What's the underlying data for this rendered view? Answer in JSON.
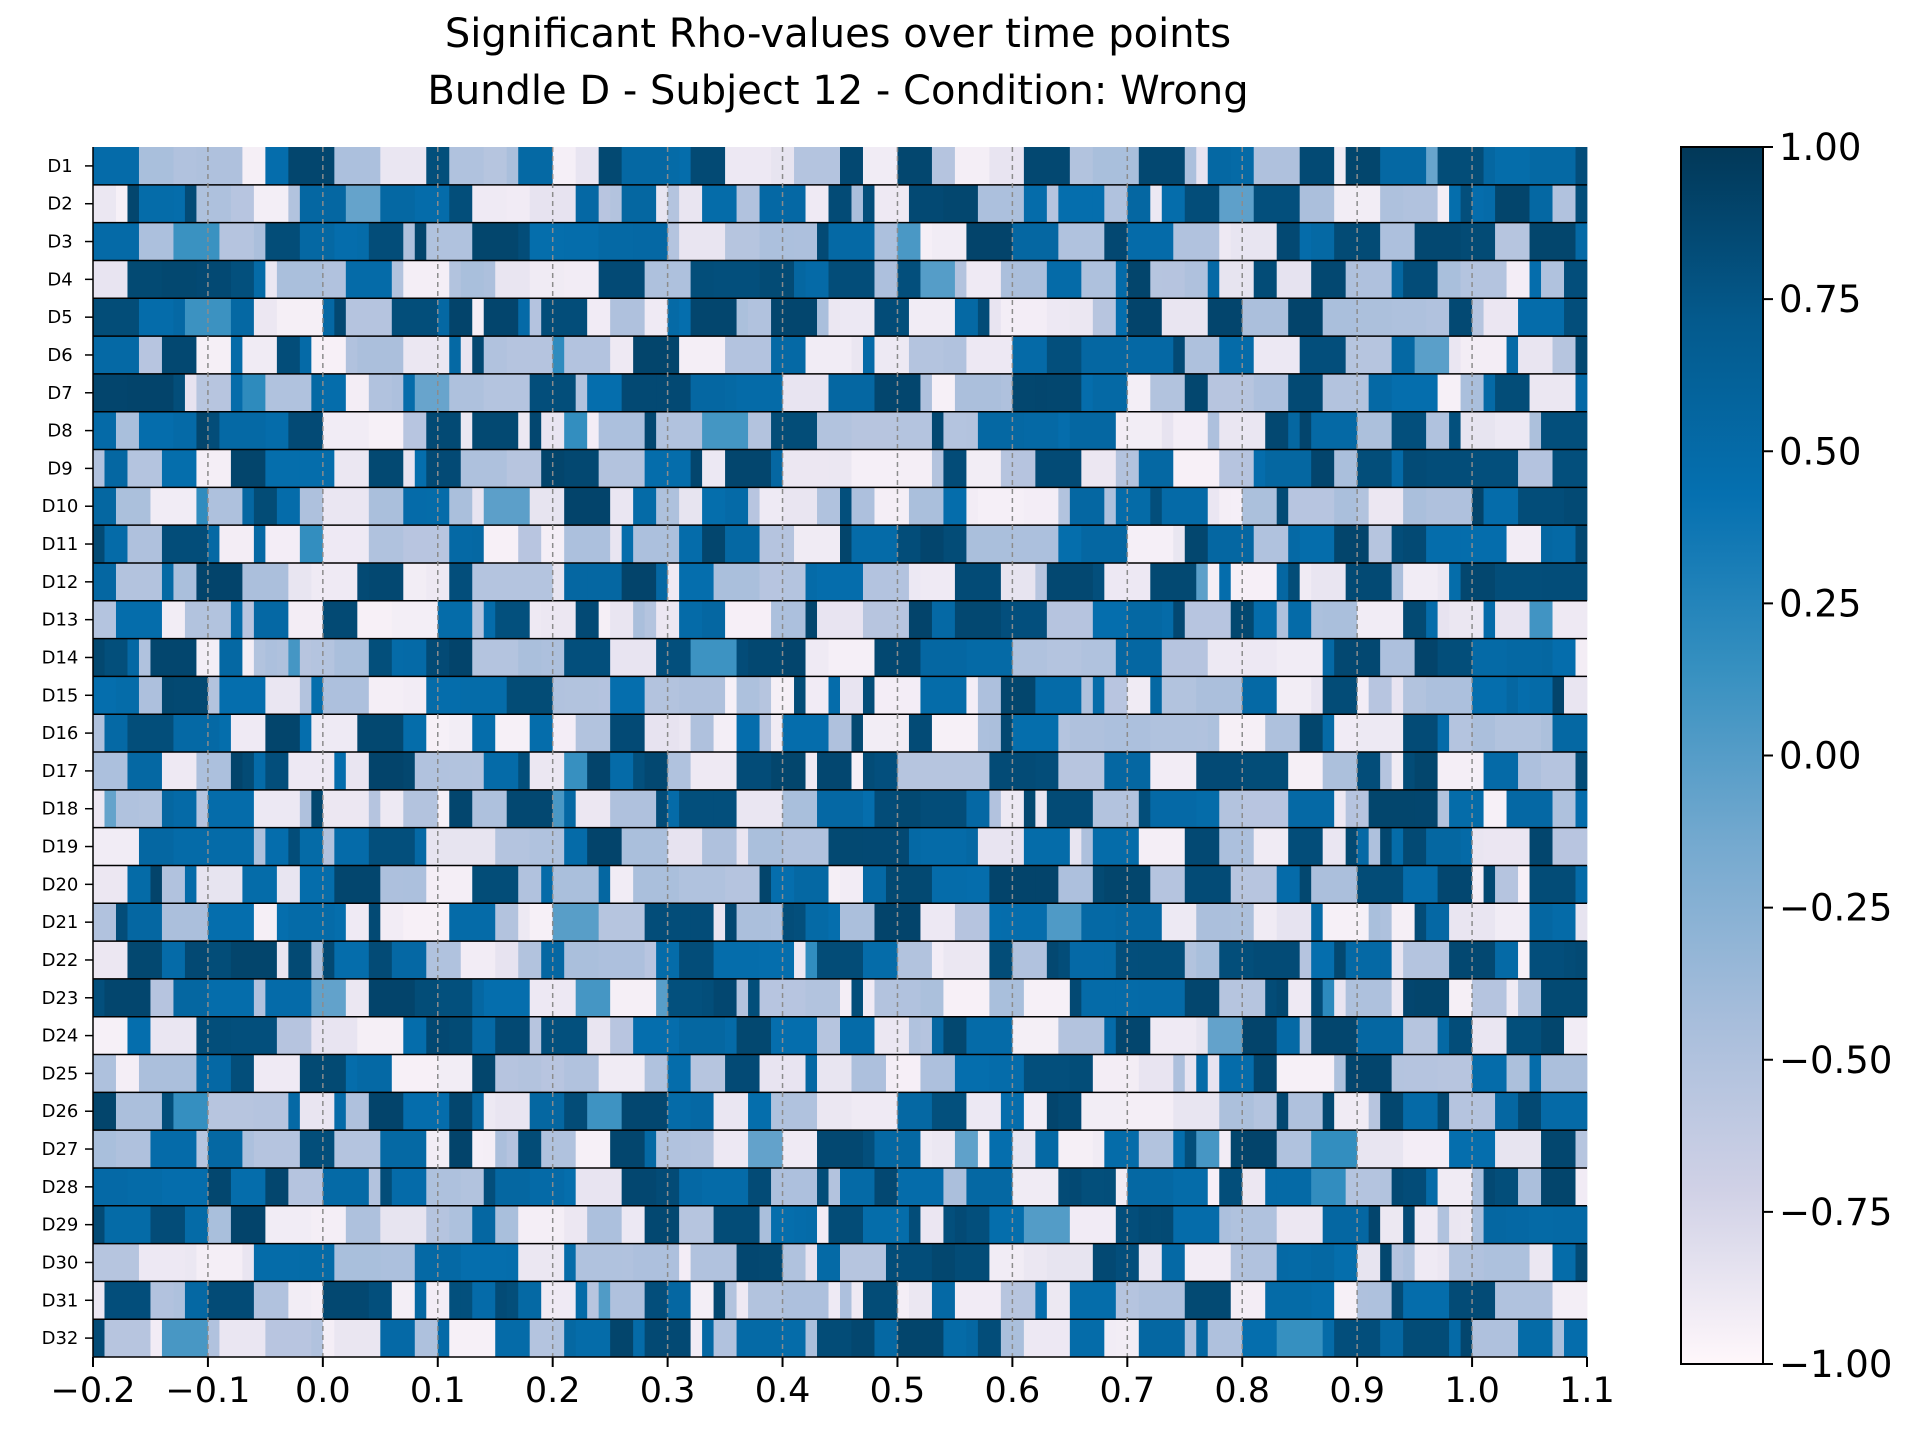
{
  "chart_data": {
    "type": "heatmap",
    "title": "Significant Rho-values over time points",
    "subtitle": "Bundle D - Subject 12 - Condition: Wrong",
    "xlabel": "",
    "ylabel": "",
    "x_range": [
      -0.2,
      1.1
    ],
    "x_tick_labels": [
      "−0.2",
      "−0.1",
      "0.0",
      "0.1",
      "0.2",
      "0.3",
      "0.4",
      "0.5",
      "0.6",
      "0.7",
      "0.8",
      "0.9",
      "1.0",
      "1.1"
    ],
    "x_ticks": [
      -0.2,
      -0.1,
      0.0,
      0.1,
      0.2,
      0.3,
      0.4,
      0.5,
      0.6,
      0.7,
      0.8,
      0.9,
      1.0,
      1.1
    ],
    "vertical_dashed_lines_at": [
      -0.1,
      0.0,
      0.1,
      0.2,
      0.3,
      0.4,
      0.5,
      0.6,
      0.7,
      0.8,
      0.9,
      1.0
    ],
    "rows": [
      "D1",
      "D2",
      "D3",
      "D4",
      "D5",
      "D6",
      "D7",
      "D8",
      "D9",
      "D10",
      "D11",
      "D12",
      "D13",
      "D14",
      "D15",
      "D16",
      "D17",
      "D18",
      "D19",
      "D20",
      "D21",
      "D22",
      "D23",
      "D24",
      "D25",
      "D26",
      "D27",
      "D28",
      "D29",
      "D30",
      "D31",
      "D32"
    ],
    "value_range": [
      -1.0,
      1.0
    ],
    "colormap": "PuBu",
    "colormap_stops": [
      "#fff7fb",
      "#d0d1e6",
      "#a6bddb",
      "#74a9cf",
      "#3690c0",
      "#0570b0",
      "#045a8d",
      "#023858"
    ],
    "colorbar_tick_values": [
      1.0,
      0.75,
      0.5,
      0.25,
      0.0,
      -0.25,
      -0.5,
      -0.75,
      -1.0
    ],
    "colorbar_tick_labels": [
      "1.00",
      "0.75",
      "0.50",
      "0.25",
      "0.00",
      "−0.25",
      "−0.50",
      "−0.75",
      "−1.00"
    ],
    "n_time_points": 130,
    "dominant_values": [
      -0.9,
      -0.5,
      0.5,
      0.85
    ],
    "row_separators": true,
    "grid": false
  }
}
